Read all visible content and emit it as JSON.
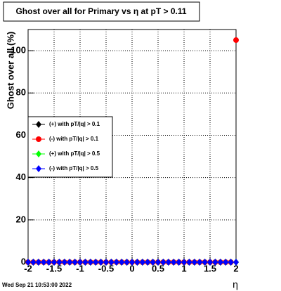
{
  "chart_data": {
    "type": "scatter",
    "title": "Ghost over all for Primary vs  η at pT > 0.11",
    "x_label": "η",
    "y_label": "Ghost over all (%)",
    "timestamp": "Wed Sep 21 10:53:00 2022",
    "xlim": [
      -2,
      2
    ],
    "ylim": [
      0,
      110
    ],
    "xticks": [
      -2,
      -1.5,
      -1,
      -0.5,
      0,
      0.5,
      1,
      1.5,
      2
    ],
    "yticks": [
      0,
      20,
      40,
      60,
      80,
      100
    ],
    "grid": true,
    "x": [
      -2,
      -1.9,
      -1.8,
      -1.7,
      -1.6,
      -1.5,
      -1.4,
      -1.3,
      -1.2,
      -1.1,
      -1,
      -0.9,
      -0.8,
      -0.7,
      -0.6,
      -0.5,
      -0.4,
      -0.3,
      -0.2,
      -0.1,
      0,
      0.1,
      0.2,
      0.3,
      0.4,
      0.5,
      0.6,
      0.7,
      0.8,
      0.9,
      1,
      1.1,
      1.2,
      1.3,
      1.4,
      1.5,
      1.6,
      1.7,
      1.8,
      1.9,
      2
    ],
    "series": [
      {
        "name": "(+) with pT/|q| > 0.1",
        "color": "#000000",
        "marker": "diamond",
        "values": [
          0,
          0,
          0,
          0,
          0,
          0,
          0,
          0,
          0,
          0,
          0,
          0,
          0,
          0,
          0,
          0,
          0,
          0,
          0,
          0,
          0,
          0,
          0,
          0,
          0,
          0,
          0,
          0,
          0,
          0,
          0,
          0,
          0,
          0,
          0,
          0,
          0,
          0,
          0,
          0,
          0
        ]
      },
      {
        "name": "(-) with pT/|q| > 0.1",
        "color": "#ff0000",
        "marker": "circle",
        "values": [
          0,
          0,
          0,
          0,
          0,
          0,
          0,
          0,
          0,
          0,
          0,
          0,
          0,
          0,
          0,
          0,
          0,
          0,
          0,
          0,
          0,
          0,
          0,
          0,
          0,
          0,
          0,
          0,
          0,
          0,
          0,
          0,
          0,
          0,
          0,
          0,
          0,
          0,
          0,
          0,
          105
        ]
      },
      {
        "name": "(+) with pT/|q| > 0.5",
        "color": "#00ff00",
        "marker": "diamond",
        "values": [
          0,
          0,
          0,
          0,
          0,
          0,
          0,
          0,
          0,
          0,
          0,
          0,
          0,
          0,
          0,
          0,
          0,
          0,
          0,
          0,
          0,
          0,
          0,
          0,
          0,
          0,
          0,
          0,
          0,
          0,
          0,
          0,
          0,
          0,
          0,
          0,
          0,
          0,
          0,
          0,
          0
        ]
      },
      {
        "name": "(-) with pT/|q| > 0.5",
        "color": "#0000ff",
        "marker": "diamond",
        "values": [
          0,
          0,
          0,
          0,
          0,
          0,
          0,
          0,
          0,
          0,
          0,
          0,
          0,
          0,
          0,
          0,
          0,
          0,
          0,
          0,
          0,
          0,
          0,
          0,
          0,
          0,
          0,
          0,
          0,
          0,
          0,
          0,
          0,
          0,
          0,
          0,
          0,
          0,
          0,
          0,
          0
        ]
      }
    ]
  }
}
